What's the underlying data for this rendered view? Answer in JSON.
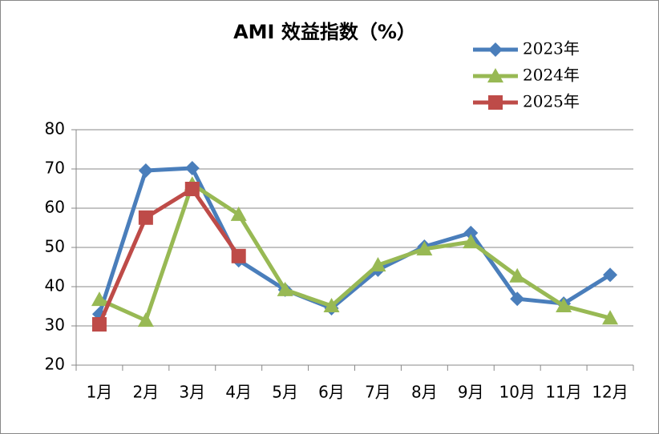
{
  "chart_data": {
    "type": "line",
    "title": "AMI 效益指数（%）",
    "categories": [
      "1月",
      "2月",
      "3月",
      "4月",
      "5月",
      "6月",
      "7月",
      "8月",
      "9月",
      "10月",
      "11月",
      "12月"
    ],
    "series": [
      {
        "name": "2023年",
        "color": "#4a7ebb",
        "marker": "diamond",
        "values": [
          33,
          69.6,
          70.2,
          46.7,
          39.2,
          34.5,
          44.3,
          50.2,
          53.7,
          36.9,
          35.7,
          43
        ]
      },
      {
        "name": "2024年",
        "color": "#98b954",
        "marker": "triangle",
        "values": [
          36.7,
          31.4,
          66.1,
          58.4,
          39.2,
          35.1,
          45.5,
          49.6,
          51.4,
          42.7,
          35.1,
          32
        ]
      },
      {
        "name": "2025年",
        "color": "#be4b48",
        "marker": "square",
        "values": [
          30.4,
          57.6,
          64.9,
          47.8,
          null,
          null,
          null,
          null,
          null,
          null,
          null,
          null
        ]
      }
    ],
    "ylim": [
      20,
      80
    ],
    "yticks": [
      20,
      30,
      40,
      50,
      60,
      70,
      80
    ],
    "grid": true,
    "legend": "top-right"
  }
}
